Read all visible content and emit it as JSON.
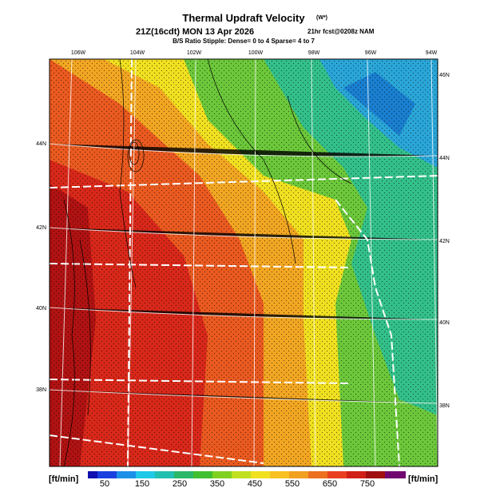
{
  "header": {
    "title": "Thermal Updraft Velocity",
    "unit": "(W*)",
    "subtitle": "21Z(16cdt) MON 13 Apr 2026",
    "forecast": "21hr fcst@0208z NAM",
    "stipple_note": "B/S Ratio Stipple:  Dense= 0 to 4  Sparse= 4 to 7"
  },
  "longitude_labels": [
    "106W",
    "104W",
    "102W",
    "100W",
    "98W",
    "96W",
    "94W"
  ],
  "latitude_labels_left": [
    "44N",
    "42N",
    "40N",
    "38N"
  ],
  "latitude_labels_right": [
    "46N",
    "44N",
    "42N",
    "40N",
    "38N"
  ],
  "colorbar": {
    "unit_left": "[ft/min]",
    "unit_right": "[ft/min]",
    "ticks": [
      "50",
      "150",
      "250",
      "350",
      "450",
      "550",
      "650",
      "750"
    ]
  }
}
